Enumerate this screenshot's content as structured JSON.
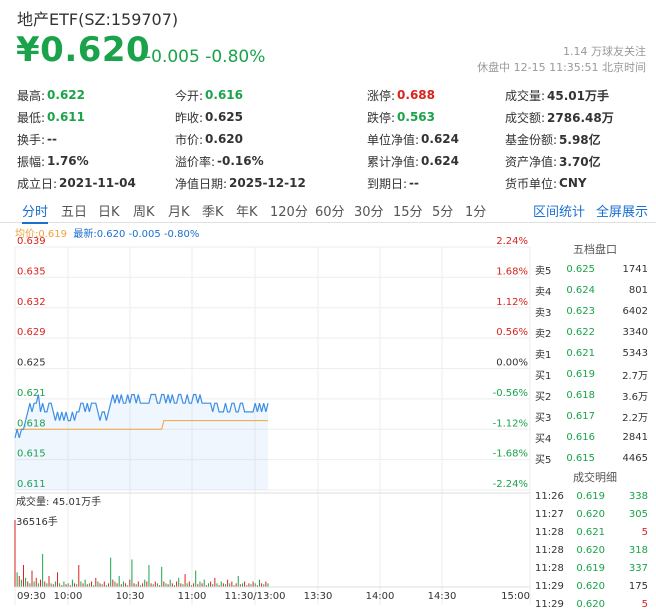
{
  "header": {
    "title": "地产ETF(SZ:159707)",
    "price": "¥0.620",
    "change": "-0.005",
    "change_pct": "-0.80%",
    "followers": "1.14 万球友关注",
    "status": "休盘中 12-15 11:35:51 北京时间"
  },
  "quote": [
    [
      {
        "label": "最高:",
        "value": "0.622",
        "color": "green"
      },
      {
        "label": "今开:",
        "value": "0.616",
        "color": "green"
      },
      {
        "label": "涨停:",
        "value": "0.688",
        "color": "red"
      },
      {
        "label": "成交量:",
        "value": "45.01万手",
        "color": ""
      }
    ],
    [
      {
        "label": "最低:",
        "value": "0.611",
        "color": "green"
      },
      {
        "label": "昨收:",
        "value": "0.625",
        "color": ""
      },
      {
        "label": "跌停:",
        "value": "0.563",
        "color": "green"
      },
      {
        "label": "成交额:",
        "value": "2786.48万",
        "color": ""
      }
    ],
    [
      {
        "label": "换手:",
        "value": "--",
        "color": ""
      },
      {
        "label": "市价:",
        "value": "0.620",
        "color": ""
      },
      {
        "label": "单位净值:",
        "value": "0.624",
        "color": ""
      },
      {
        "label": "基金份额:",
        "value": "5.98亿",
        "color": ""
      }
    ],
    [
      {
        "label": "振幅:",
        "value": "1.76%",
        "color": ""
      },
      {
        "label": "溢价率:",
        "value": "-0.16%",
        "color": ""
      },
      {
        "label": "累计净值:",
        "value": "0.624",
        "color": ""
      },
      {
        "label": "资产净值:",
        "value": "3.70亿",
        "color": ""
      }
    ],
    [
      {
        "label": "成立日:",
        "value": "2021-11-04",
        "color": ""
      },
      {
        "label": "净值日期:",
        "value": "2025-12-12",
        "color": ""
      },
      {
        "label": "到期日:",
        "value": "--",
        "color": ""
      },
      {
        "label": "货币单位:",
        "value": "CNY",
        "color": ""
      }
    ]
  ],
  "tabs": [
    "分时",
    "五日",
    "日K",
    "周K",
    "月K",
    "季K",
    "年K",
    "120分",
    "60分",
    "30分",
    "15分",
    "5分",
    "1分"
  ],
  "tab_right": [
    "区间统计",
    "全屏展示"
  ],
  "legend": {
    "avg": "均价:0.619",
    "latest": "最新:0.620 -0.005 -0.80%"
  },
  "orderbook": {
    "title": "五档盘口",
    "rows": [
      [
        "卖5",
        "0.625",
        "1741"
      ],
      [
        "卖4",
        "0.624",
        "801"
      ],
      [
        "卖3",
        "0.623",
        "6402"
      ],
      [
        "卖2",
        "0.622",
        "3340"
      ],
      [
        "卖1",
        "0.621",
        "5343"
      ],
      [
        "买1",
        "0.619",
        "2.7万"
      ],
      [
        "买2",
        "0.618",
        "3.6万"
      ],
      [
        "买3",
        "0.617",
        "2.2万"
      ],
      [
        "买4",
        "0.616",
        "2841"
      ],
      [
        "买5",
        "0.615",
        "4465"
      ]
    ]
  },
  "trades": {
    "title": "成交明细",
    "rows": [
      [
        "11:26",
        "0.619",
        "338",
        "green"
      ],
      [
        "11:27",
        "0.620",
        "305",
        "green"
      ],
      [
        "11:28",
        "0.621",
        "5",
        "red"
      ],
      [
        "11:28",
        "0.620",
        "318",
        "green"
      ],
      [
        "11:28",
        "0.619",
        "337",
        "green"
      ],
      [
        "11:29",
        "0.620",
        "175",
        "black"
      ],
      [
        "11:29",
        "0.620",
        "5",
        "red"
      ]
    ]
  },
  "volume": {
    "label": "成交量: 45.01万手",
    "max": "36516手"
  },
  "colors": {
    "up": "#d9231c",
    "down": "#1aa34a",
    "price_line": "#3d8fe6",
    "avg_line": "#f0a33c",
    "accent": "#1a6fd1"
  },
  "chart_data": {
    "type": "line",
    "title": "",
    "price_ticks": [
      "0.639",
      "0.635",
      "0.632",
      "0.629",
      "0.625",
      "0.621",
      "0.618",
      "0.615",
      "0.611"
    ],
    "pct_ticks": [
      "2.24%",
      "1.68%",
      "1.12%",
      "0.56%",
      "0.00%",
      "-0.56%",
      "-1.12%",
      "-1.68%",
      "-2.24%"
    ],
    "x_ticks": [
      "09:30",
      "10:00",
      "10:30",
      "11:00",
      "11:30/13:00",
      "13:30",
      "14:00",
      "14:30",
      "15:00"
    ],
    "ylim": [
      0.611,
      0.639
    ],
    "reference": 0.625,
    "series": [
      {
        "values": [
          0.617,
          0.618,
          0.617,
          0.618,
          0.618,
          0.619,
          0.62,
          0.621,
          0.62,
          0.621,
          0.621,
          0.622,
          0.62,
          0.621,
          0.62,
          0.62,
          0.621,
          0.621,
          0.62,
          0.619,
          0.62,
          0.619,
          0.62,
          0.619,
          0.62,
          0.619,
          0.619,
          0.62,
          0.619,
          0.62,
          0.62,
          0.621,
          0.621,
          0.62,
          0.621,
          0.62,
          0.621,
          0.621,
          0.621,
          0.62,
          0.619,
          0.62,
          0.62,
          0.619,
          0.62,
          0.621,
          0.622,
          0.621,
          0.622,
          0.621,
          0.622,
          0.621,
          0.621,
          0.622,
          0.621,
          0.622,
          0.622,
          0.621,
          0.622,
          0.621,
          0.621,
          0.621,
          0.621,
          0.621,
          0.622,
          0.622,
          0.622,
          0.621,
          0.621,
          0.622,
          0.622,
          0.621,
          0.622,
          0.621,
          0.622,
          0.621,
          0.621,
          0.622,
          0.622,
          0.621,
          0.621,
          0.622,
          0.621,
          0.621,
          0.622,
          0.622,
          0.621,
          0.622,
          0.621,
          0.621,
          0.621,
          0.621,
          0.621,
          0.62,
          0.621,
          0.621,
          0.62,
          0.62,
          0.62,
          0.621,
          0.62,
          0.62,
          0.621,
          0.621,
          0.62,
          0.62,
          0.621,
          0.621,
          0.62,
          0.62,
          0.62,
          0.62,
          0.62,
          0.621,
          0.62,
          0.621,
          0.62,
          0.621,
          0.62,
          0.621
        ]
      },
      {
        "values": [
          0.618,
          0.618,
          0.618,
          0.618,
          0.618,
          0.618,
          0.618,
          0.618,
          0.618,
          0.618,
          0.618,
          0.618,
          0.618,
          0.618,
          0.618,
          0.618,
          0.618,
          0.618,
          0.618,
          0.618,
          0.618,
          0.618,
          0.618,
          0.618,
          0.618,
          0.618,
          0.618,
          0.618,
          0.618,
          0.618,
          0.618,
          0.618,
          0.618,
          0.618,
          0.618,
          0.618,
          0.618,
          0.618,
          0.618,
          0.618,
          0.618,
          0.618,
          0.618,
          0.618,
          0.618,
          0.618,
          0.618,
          0.618,
          0.618,
          0.618,
          0.618,
          0.618,
          0.618,
          0.618,
          0.618,
          0.618,
          0.618,
          0.618,
          0.618,
          0.618,
          0.618,
          0.618,
          0.618,
          0.618,
          0.618,
          0.618,
          0.618,
          0.618,
          0.618,
          0.618,
          0.619,
          0.619,
          0.619,
          0.619,
          0.619,
          0.619,
          0.619,
          0.619,
          0.619,
          0.619,
          0.619,
          0.619,
          0.619,
          0.619,
          0.619,
          0.619,
          0.619,
          0.619,
          0.619,
          0.619,
          0.619,
          0.619,
          0.619,
          0.619,
          0.619,
          0.619,
          0.619,
          0.619,
          0.619,
          0.619,
          0.619,
          0.619,
          0.619,
          0.619,
          0.619,
          0.619,
          0.619,
          0.619,
          0.619,
          0.619,
          0.619,
          0.619,
          0.619,
          0.619,
          0.619,
          0.619,
          0.619,
          0.619,
          0.619,
          0.619
        ]
      }
    ],
    "volume_values": [
      36516,
      8000,
      6000,
      4000,
      12000,
      5000,
      3000,
      2000,
      9000,
      3000,
      5000,
      2000,
      4000,
      18000,
      3000,
      2000,
      6000,
      2000,
      1500,
      3000,
      8000,
      2000,
      1000,
      3000,
      1500,
      2000,
      1000,
      4000,
      2000,
      1500,
      12000,
      3000,
      2000,
      4000,
      1500,
      2000,
      3000,
      1000,
      5000,
      3000,
      2000,
      1500,
      3000,
      1000,
      2000,
      16000,
      4000,
      3000,
      2000,
      6000,
      1500,
      3000,
      2000,
      1000,
      4000,
      15000,
      2000,
      1500,
      3000,
      1000,
      2000,
      4000,
      3000,
      12000,
      2000,
      1500,
      3000,
      2000,
      1000,
      11000,
      3000,
      2000,
      1500,
      4000,
      2000,
      1000,
      3000,
      5000,
      2000,
      1500,
      7000,
      2000,
      3000,
      1000,
      2000,
      9000,
      1500,
      3000,
      2000,
      4000,
      1000,
      2000,
      3000,
      1500,
      5000,
      2000,
      1000,
      3000,
      2000,
      1500,
      4000,
      2000,
      3000,
      1000,
      2000,
      6000,
      1500,
      2000,
      3000,
      1000,
      2000,
      1500,
      3000,
      2000,
      1000,
      4000,
      2000,
      1500,
      3000,
      2000
    ],
    "volume_colors": [
      "red",
      "green",
      "red",
      "green",
      "red",
      "green",
      "red",
      "green",
      "red",
      "green",
      "red",
      "green",
      "red",
      "green",
      "red",
      "green",
      "red",
      "green",
      "red",
      "green",
      "red",
      "green",
      "red",
      "green",
      "red",
      "green",
      "red",
      "green",
      "red",
      "green",
      "red",
      "green",
      "red",
      "green",
      "red",
      "green",
      "red",
      "green",
      "red",
      "green",
      "red",
      "green",
      "red",
      "green",
      "red",
      "green",
      "red",
      "green",
      "red",
      "green",
      "red",
      "green",
      "red",
      "green",
      "red",
      "green",
      "red",
      "green",
      "red",
      "green",
      "red",
      "green",
      "red",
      "green",
      "red",
      "green",
      "red",
      "green",
      "red",
      "green",
      "red",
      "green",
      "red",
      "green",
      "red",
      "green",
      "red",
      "green",
      "red",
      "green",
      "red",
      "green",
      "red",
      "green",
      "red",
      "green",
      "red",
      "green",
      "red",
      "green",
      "red",
      "green",
      "red",
      "green",
      "red",
      "green",
      "red",
      "green",
      "red",
      "green",
      "red",
      "green",
      "red",
      "green",
      "red",
      "green",
      "red",
      "green",
      "red",
      "green",
      "red",
      "green",
      "red",
      "green",
      "red",
      "green",
      "red",
      "green",
      "red",
      "green"
    ]
  }
}
